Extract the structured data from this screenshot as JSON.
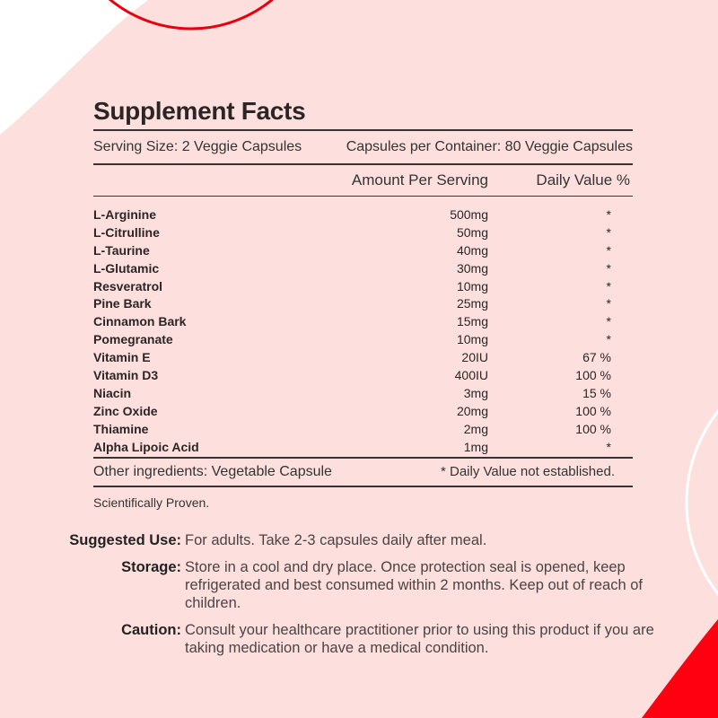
{
  "colors": {
    "background": "#fde0dd",
    "accent": "#e8000f",
    "white": "#ffffff"
  },
  "facts": {
    "title": "Supplement Facts",
    "serving_size": "Serving Size: 2 Veggie Capsules",
    "per_container": "Capsules per Container: 80 Veggie Capsules",
    "col_amount": "Amount Per Serving",
    "col_dv": "Daily Value %",
    "rows": [
      {
        "name": "L-Arginine",
        "amount": "500mg",
        "dv": "*"
      },
      {
        "name": "L-Citrulline",
        "amount": "50mg",
        "dv": "*"
      },
      {
        "name": "L-Taurine",
        "amount": "40mg",
        "dv": "*"
      },
      {
        "name": "L-Glutamic",
        "amount": "30mg",
        "dv": "*"
      },
      {
        "name": "Resveratrol",
        "amount": "10mg",
        "dv": "*"
      },
      {
        "name": "Pine Bark",
        "amount": "25mg",
        "dv": "*"
      },
      {
        "name": "Cinnamon Bark",
        "amount": "15mg",
        "dv": "*"
      },
      {
        "name": "Pomegranate",
        "amount": "10mg",
        "dv": "*"
      },
      {
        "name": "Vitamin E",
        "amount": "20IU",
        "dv": "67 %"
      },
      {
        "name": "Vitamin D3",
        "amount": "400IU",
        "dv": "100 %"
      },
      {
        "name": "Niacin",
        "amount": "3mg",
        "dv": "15 %"
      },
      {
        "name": "Zinc Oxide",
        "amount": "20mg",
        "dv": "100 %"
      },
      {
        "name": "Thiamine",
        "amount": "2mg",
        "dv": "100 %"
      },
      {
        "name": "Alpha Lipoic Acid",
        "amount": "1mg",
        "dv": "*"
      }
    ],
    "other_ingredients": "Other ingredients: Vegetable Capsule",
    "dv_note": "* Daily Value not established.",
    "tagline": "Scientifically Proven."
  },
  "usage": [
    {
      "label": "Suggested Use:",
      "text": "For adults. Take 2-3 capsules daily after meal."
    },
    {
      "label": "Storage:",
      "text": "Store in a cool and dry place. Once protection seal is opened, keep refrigerated and best consumed within 2 months. Keep out of reach of children."
    },
    {
      "label": "Caution:",
      "text": "Consult your healthcare practitioner prior to using this product if you are taking medication or have a medical condition."
    }
  ]
}
